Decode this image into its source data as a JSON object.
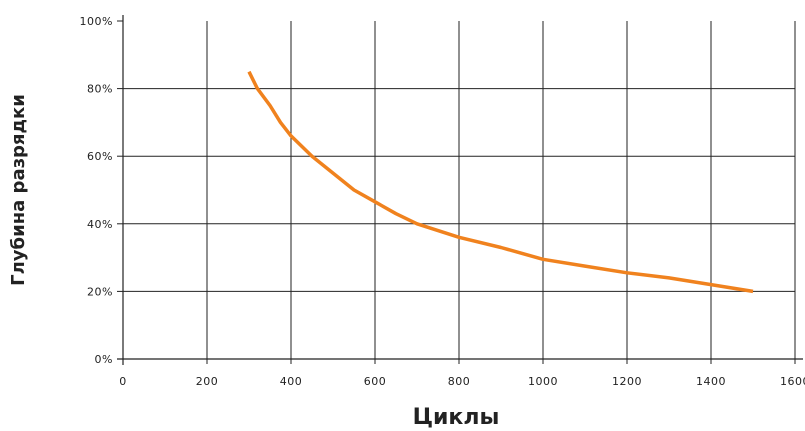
{
  "chart_data": {
    "type": "line",
    "xlabel": "Циклы",
    "ylabel": "Глубина разрядки",
    "xlim": [
      0,
      1600
    ],
    "ylim": [
      0,
      100
    ],
    "x_ticks": [
      0,
      200,
      400,
      600,
      800,
      1000,
      1200,
      1400,
      1600
    ],
    "y_ticks": [
      0,
      20,
      40,
      60,
      80,
      100
    ],
    "x_tick_labels": [
      "0",
      "200",
      "400",
      "600",
      "800",
      "1000",
      "1200",
      "1400",
      "1600"
    ],
    "y_tick_labels": [
      "0%",
      "20%",
      "40%",
      "60%",
      "80%",
      "100%"
    ],
    "grid": true,
    "series": [
      {
        "color": "#f0821e",
        "points": [
          [
            300,
            85
          ],
          [
            320,
            80
          ],
          [
            350,
            75
          ],
          [
            375,
            70
          ],
          [
            400,
            66
          ],
          [
            450,
            60
          ],
          [
            500,
            55
          ],
          [
            550,
            50
          ],
          [
            600,
            46.5
          ],
          [
            650,
            43
          ],
          [
            700,
            40
          ],
          [
            800,
            36
          ],
          [
            900,
            33
          ],
          [
            1000,
            29.5
          ],
          [
            1100,
            27.5
          ],
          [
            1200,
            25.5
          ],
          [
            1300,
            24
          ],
          [
            1400,
            22
          ],
          [
            1500,
            20
          ]
        ]
      }
    ]
  }
}
